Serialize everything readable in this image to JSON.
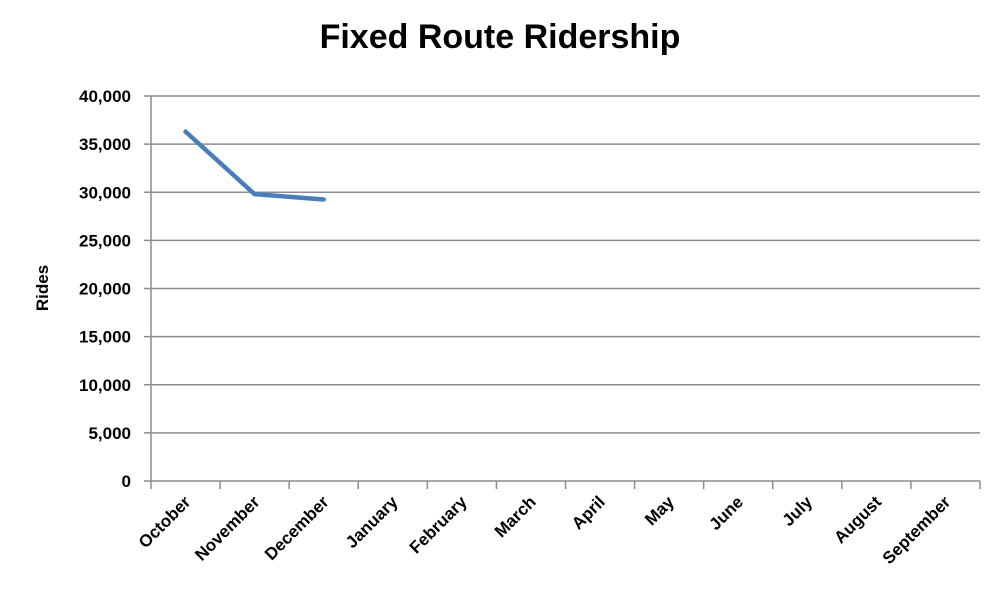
{
  "chart_data": {
    "type": "line",
    "title": "Fixed Route Ridership",
    "xlabel": "",
    "ylabel": "Rides",
    "categories": [
      "October",
      "November",
      "December",
      "January",
      "February",
      "March",
      "April",
      "May",
      "June",
      "July",
      "August",
      "September"
    ],
    "series": [
      {
        "values": [
          36300,
          29800,
          29250,
          null,
          null,
          null,
          null,
          null,
          null,
          null,
          null,
          null
        ]
      }
    ],
    "ylim": [
      0,
      40000
    ],
    "yticks": [
      "0",
      "5,000",
      "10,000",
      "15,000",
      "20,000",
      "25,000",
      "30,000",
      "35,000",
      "40,000"
    ],
    "ytick_values": [
      0,
      5000,
      10000,
      15000,
      20000,
      25000,
      30000,
      35000,
      40000
    ],
    "grid": true,
    "legend": "none",
    "colors": {
      "series": "#4a7ebb",
      "grid": "#8c8c8c",
      "axis": "#8c8c8c"
    }
  }
}
